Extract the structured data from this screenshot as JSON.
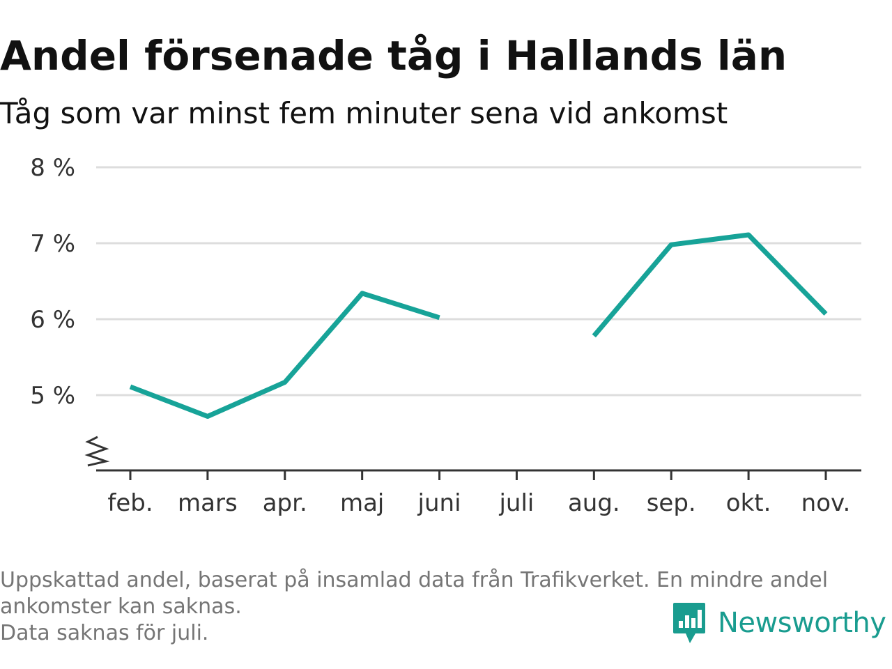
{
  "colors": {
    "line": "#17a398",
    "grid": "#dddddd",
    "axis": "#333333",
    "brand": "#199c8f"
  },
  "chart_data": {
    "type": "line",
    "title": "Andel försenade tåg i Hallands län",
    "subtitle": "Tåg som var minst fem minuter sena vid ankomst",
    "categories": [
      "feb.",
      "mars",
      "apr.",
      "maj",
      "juni",
      "juli",
      "aug.",
      "sep.",
      "okt.",
      "nov."
    ],
    "series": [
      {
        "values": [
          5.11,
          4.72,
          5.17,
          6.34,
          6.02,
          null,
          5.78,
          6.98,
          7.11,
          6.07
        ]
      }
    ],
    "yticks": [
      5,
      6,
      7,
      8
    ],
    "ytick_labels": [
      "5 %",
      "6 %",
      "7 %",
      "8 %"
    ],
    "ylim": [
      4,
      8
    ],
    "y_axis_break": true,
    "grid": "horizontal",
    "xlabel": "",
    "ylabel": ""
  },
  "notes": [
    "Uppskattad andel, baserat på insamlad data från Trafikverket. En mindre andel",
    "ankomster kan saknas.",
    "Data saknas för juli."
  ],
  "logo": {
    "text": "Newsworthy",
    "icon": "newsworthy-chart-bubble-icon"
  }
}
